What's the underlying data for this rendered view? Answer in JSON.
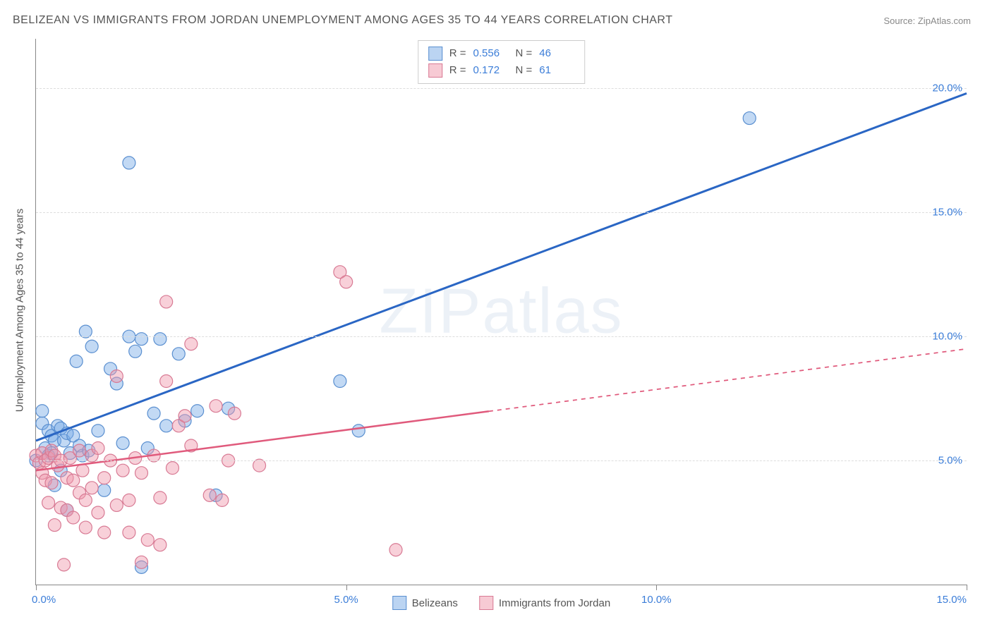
{
  "title": "BELIZEAN VS IMMIGRANTS FROM JORDAN UNEMPLOYMENT AMONG AGES 35 TO 44 YEARS CORRELATION CHART",
  "source_label": "Source: ZipAtlas.com",
  "watermark": "ZIPatlas",
  "y_axis_label": "Unemployment Among Ages 35 to 44 years",
  "chart": {
    "type": "scatter",
    "xlim": [
      0,
      15
    ],
    "ylim": [
      0,
      22
    ],
    "x_ticks": [
      0,
      5,
      10,
      15
    ],
    "x_tick_labels": [
      "0.0%",
      "5.0%",
      "10.0%",
      "15.0%"
    ],
    "y_ticks": [
      5,
      10,
      15,
      20
    ],
    "y_tick_labels": [
      "5.0%",
      "10.0%",
      "15.0%",
      "20.0%"
    ],
    "grid_color": "#dddddd",
    "background_color": "#ffffff",
    "marker_radius": 9,
    "marker_stroke_width": 1.2,
    "series": [
      {
        "name": "Belizeans",
        "fill": "rgba(120,170,230,0.45)",
        "stroke": "#5a8fd0",
        "R": "0.556",
        "N": "46",
        "trend": {
          "x1": 0,
          "y1": 5.8,
          "x2": 15,
          "y2": 19.8,
          "solid_until_x": 15,
          "color": "#2a66c4",
          "width": 3
        },
        "points": [
          [
            0.0,
            5.0
          ],
          [
            0.1,
            6.5
          ],
          [
            0.1,
            7.0
          ],
          [
            0.15,
            5.5
          ],
          [
            0.2,
            6.2
          ],
          [
            0.2,
            5.2
          ],
          [
            0.25,
            5.3
          ],
          [
            0.25,
            6.0
          ],
          [
            0.3,
            5.8
          ],
          [
            0.3,
            4.0
          ],
          [
            0.35,
            6.4
          ],
          [
            0.4,
            4.6
          ],
          [
            0.4,
            6.3
          ],
          [
            0.45,
            5.8
          ],
          [
            0.5,
            6.1
          ],
          [
            0.5,
            3.0
          ],
          [
            0.55,
            5.3
          ],
          [
            0.6,
            6.0
          ],
          [
            0.65,
            9.0
          ],
          [
            0.7,
            5.6
          ],
          [
            0.75,
            5.2
          ],
          [
            0.8,
            10.2
          ],
          [
            0.85,
            5.4
          ],
          [
            0.9,
            9.6
          ],
          [
            1.0,
            6.2
          ],
          [
            1.1,
            3.8
          ],
          [
            1.2,
            8.7
          ],
          [
            1.3,
            8.1
          ],
          [
            1.4,
            5.7
          ],
          [
            1.5,
            10.0
          ],
          [
            1.5,
            17.0
          ],
          [
            1.6,
            9.4
          ],
          [
            1.7,
            9.9
          ],
          [
            1.7,
            0.7
          ],
          [
            1.8,
            5.5
          ],
          [
            1.9,
            6.9
          ],
          [
            2.0,
            9.9
          ],
          [
            2.1,
            6.4
          ],
          [
            2.3,
            9.3
          ],
          [
            2.4,
            6.6
          ],
          [
            2.6,
            7.0
          ],
          [
            2.9,
            3.6
          ],
          [
            3.1,
            7.1
          ],
          [
            4.9,
            8.2
          ],
          [
            5.2,
            6.2
          ],
          [
            11.5,
            18.8
          ]
        ]
      },
      {
        "name": "Immigrants from Jordan",
        "fill": "rgba(240,150,170,0.45)",
        "stroke": "#d87a94",
        "R": "0.172",
        "N": "61",
        "trend": {
          "x1": 0,
          "y1": 4.6,
          "x2": 15,
          "y2": 9.5,
          "solid_until_x": 7.3,
          "color": "#e05a7c",
          "width": 2.5
        },
        "points": [
          [
            0.0,
            5.2
          ],
          [
            0.05,
            4.9
          ],
          [
            0.1,
            5.3
          ],
          [
            0.1,
            4.5
          ],
          [
            0.15,
            5.0
          ],
          [
            0.15,
            4.2
          ],
          [
            0.2,
            5.1
          ],
          [
            0.2,
            3.3
          ],
          [
            0.25,
            5.4
          ],
          [
            0.25,
            4.1
          ],
          [
            0.3,
            5.2
          ],
          [
            0.3,
            2.4
          ],
          [
            0.35,
            4.8
          ],
          [
            0.4,
            5.0
          ],
          [
            0.4,
            3.1
          ],
          [
            0.45,
            0.8
          ],
          [
            0.5,
            4.3
          ],
          [
            0.5,
            3.0
          ],
          [
            0.55,
            5.1
          ],
          [
            0.6,
            4.2
          ],
          [
            0.6,
            2.7
          ],
          [
            0.7,
            5.4
          ],
          [
            0.7,
            3.7
          ],
          [
            0.75,
            4.6
          ],
          [
            0.8,
            3.4
          ],
          [
            0.8,
            2.3
          ],
          [
            0.9,
            5.2
          ],
          [
            0.9,
            3.9
          ],
          [
            1.0,
            5.5
          ],
          [
            1.0,
            2.9
          ],
          [
            1.1,
            4.3
          ],
          [
            1.1,
            2.1
          ],
          [
            1.2,
            5.0
          ],
          [
            1.3,
            3.2
          ],
          [
            1.3,
            8.4
          ],
          [
            1.4,
            4.6
          ],
          [
            1.5,
            3.4
          ],
          [
            1.5,
            2.1
          ],
          [
            1.6,
            5.1
          ],
          [
            1.7,
            0.9
          ],
          [
            1.7,
            4.5
          ],
          [
            1.8,
            1.8
          ],
          [
            1.9,
            5.2
          ],
          [
            2.0,
            3.5
          ],
          [
            2.0,
            1.6
          ],
          [
            2.1,
            8.2
          ],
          [
            2.1,
            11.4
          ],
          [
            2.2,
            4.7
          ],
          [
            2.3,
            6.4
          ],
          [
            2.4,
            6.8
          ],
          [
            2.5,
            5.6
          ],
          [
            2.5,
            9.7
          ],
          [
            2.8,
            3.6
          ],
          [
            2.9,
            7.2
          ],
          [
            3.0,
            3.4
          ],
          [
            3.1,
            5.0
          ],
          [
            3.2,
            6.9
          ],
          [
            3.6,
            4.8
          ],
          [
            4.9,
            12.6
          ],
          [
            5.0,
            12.2
          ],
          [
            5.8,
            1.4
          ]
        ]
      }
    ]
  },
  "legend_bottom": [
    {
      "label": "Belizeans",
      "swatch": "blue"
    },
    {
      "label": "Immigrants from Jordan",
      "swatch": "pink"
    }
  ]
}
